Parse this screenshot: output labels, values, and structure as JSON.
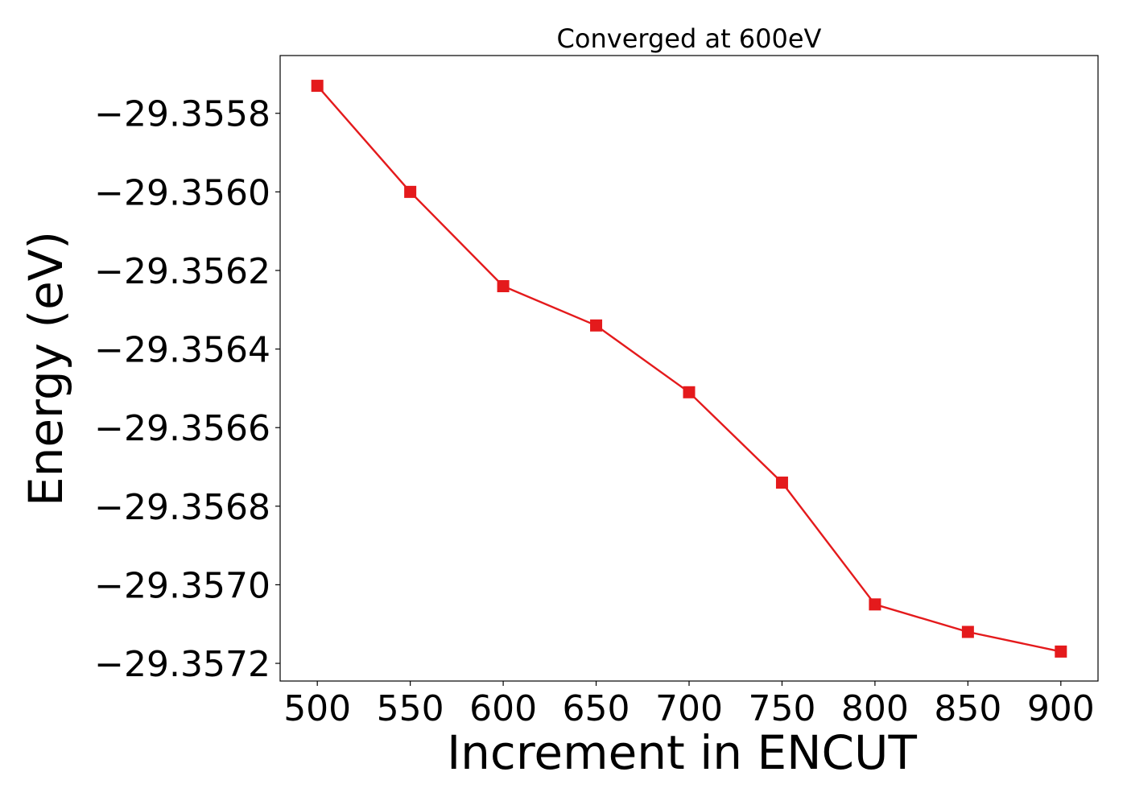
{
  "chart_data": {
    "type": "line",
    "title": "Converged at 600eV",
    "xlabel": "Increment in ENCUT",
    "ylabel": "Energy (eV)",
    "x": [
      500,
      550,
      600,
      650,
      700,
      750,
      800,
      850,
      900
    ],
    "series": [
      {
        "values": [
          -29.35573,
          -29.356,
          -29.35624,
          -29.35634,
          -29.35651,
          -29.35674,
          -29.35705,
          -29.35712,
          -29.35717
        ],
        "color": "#e41a1c",
        "marker": "square"
      }
    ],
    "xticks": [
      500,
      550,
      600,
      650,
      700,
      750,
      800,
      850,
      900
    ],
    "xtick_labels": [
      "500",
      "550",
      "600",
      "650",
      "700",
      "750",
      "800",
      "850",
      "900"
    ],
    "yticks": [
      -29.3558,
      -29.356,
      -29.3562,
      -29.3564,
      -29.3566,
      -29.3568,
      -29.357,
      -29.3572
    ],
    "ytick_labels": [
      "−29.3558",
      "−29.3560",
      "−29.3562",
      "−29.3564",
      "−29.3566",
      "−29.3568",
      "−29.3570",
      "−29.3572"
    ],
    "xlim": [
      480,
      920
    ],
    "ylim": [
      -29.357245,
      -29.355653
    ],
    "grid": false,
    "legend": "none"
  }
}
